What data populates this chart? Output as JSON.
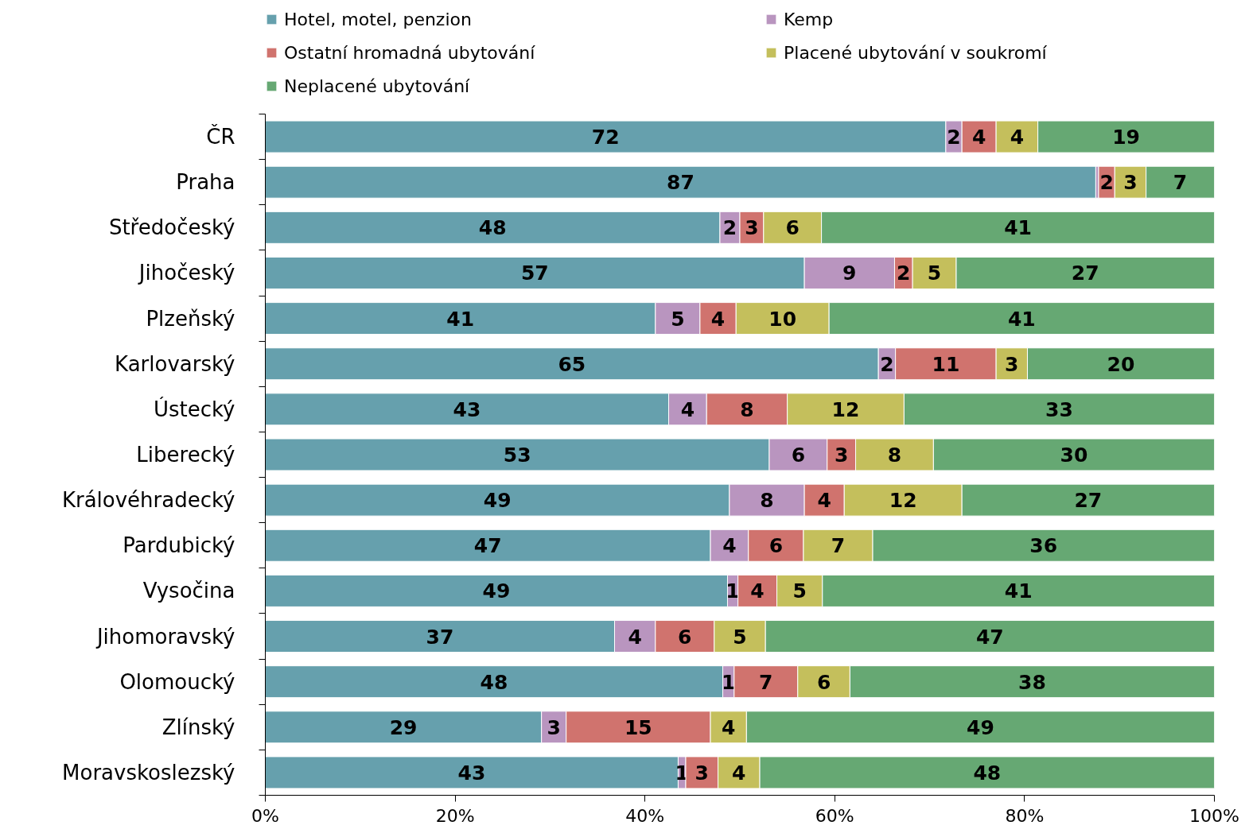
{
  "chart_data": {
    "type": "bar",
    "orientation": "horizontal",
    "stacked": true,
    "categories": [
      "ČR",
      "Praha",
      "Středočeský",
      "Jihočeský",
      "Plzeňský",
      "Karlovarský",
      "Ústecký",
      "Liberecký",
      "Královéhradecký",
      "Pardubický",
      "Vysočina",
      "Jihomoravský",
      "Olomoucký",
      "Zlínský",
      "Moravskoslezský"
    ],
    "series": [
      {
        "name": "Hotel, motel, penzion",
        "color": "#66a0ad",
        "values": [
          71.7,
          87.5,
          47.9,
          56.8,
          41.1,
          64.6,
          42.5,
          53.1,
          48.9,
          46.9,
          48.7,
          36.8,
          48.2,
          29.1,
          43.5
        ],
        "value_labels": [
          "72",
          "87",
          "48",
          "57",
          "41",
          "65",
          "43",
          "53",
          "49",
          "47",
          "49",
          "37",
          "48",
          "29",
          "43"
        ]
      },
      {
        "name": "Kemp",
        "color": "#b995bf",
        "values": [
          1.7,
          0.3,
          2.1,
          9.5,
          4.7,
          1.8,
          4.0,
          6.1,
          7.9,
          4.0,
          1.1,
          4.3,
          1.2,
          2.6,
          0.8
        ],
        "value_labels": [
          "2",
          null,
          "2",
          "9",
          "5",
          "2",
          "4",
          "6",
          "8",
          "4",
          "1",
          "4",
          "1",
          "3",
          "1"
        ]
      },
      {
        "name": "Ostatní hromadná ubytování",
        "color": "#d0736e",
        "values": [
          3.6,
          1.7,
          2.5,
          1.9,
          3.8,
          10.6,
          8.5,
          3.0,
          4.2,
          5.8,
          4.1,
          6.2,
          6.7,
          15.2,
          3.4
        ],
        "value_labels": [
          "4",
          "2",
          "3",
          "2",
          "4",
          "11",
          "8",
          "3",
          "4",
          "6",
          "4",
          "6",
          "7",
          "15",
          "3"
        ]
      },
      {
        "name": "Placené ubytování v soukromí",
        "color": "#c4bf5c",
        "values": [
          4.4,
          3.3,
          6.1,
          4.6,
          9.8,
          3.3,
          12.3,
          8.2,
          12.4,
          7.3,
          4.8,
          5.4,
          5.5,
          3.8,
          4.4
        ],
        "value_labels": [
          "4",
          "3",
          "6",
          "5",
          "10",
          "3",
          "12",
          "8",
          "12",
          "7",
          "5",
          "5",
          "6",
          "4",
          "4"
        ]
      },
      {
        "name": "Neplacené ubytování",
        "color": "#66a873",
        "values": [
          18.6,
          7.2,
          41.4,
          27.2,
          40.6,
          19.7,
          32.7,
          29.6,
          26.6,
          36.0,
          41.3,
          47.3,
          38.4,
          49.3,
          47.9
        ],
        "value_labels": [
          "19",
          "7",
          "41",
          "27",
          "41",
          "20",
          "33",
          "30",
          "27",
          "36",
          "41",
          "47",
          "38",
          "49",
          "48"
        ]
      }
    ],
    "xlim": [
      0,
      100
    ],
    "xticks": [
      {
        "value": 0,
        "label": "0%"
      },
      {
        "value": 20,
        "label": "20%"
      },
      {
        "value": 40,
        "label": "40%"
      },
      {
        "value": 60,
        "label": "60%"
      },
      {
        "value": 80,
        "label": "80%"
      },
      {
        "value": 100,
        "label": "100%"
      }
    ],
    "grid": false,
    "legend": "top"
  }
}
